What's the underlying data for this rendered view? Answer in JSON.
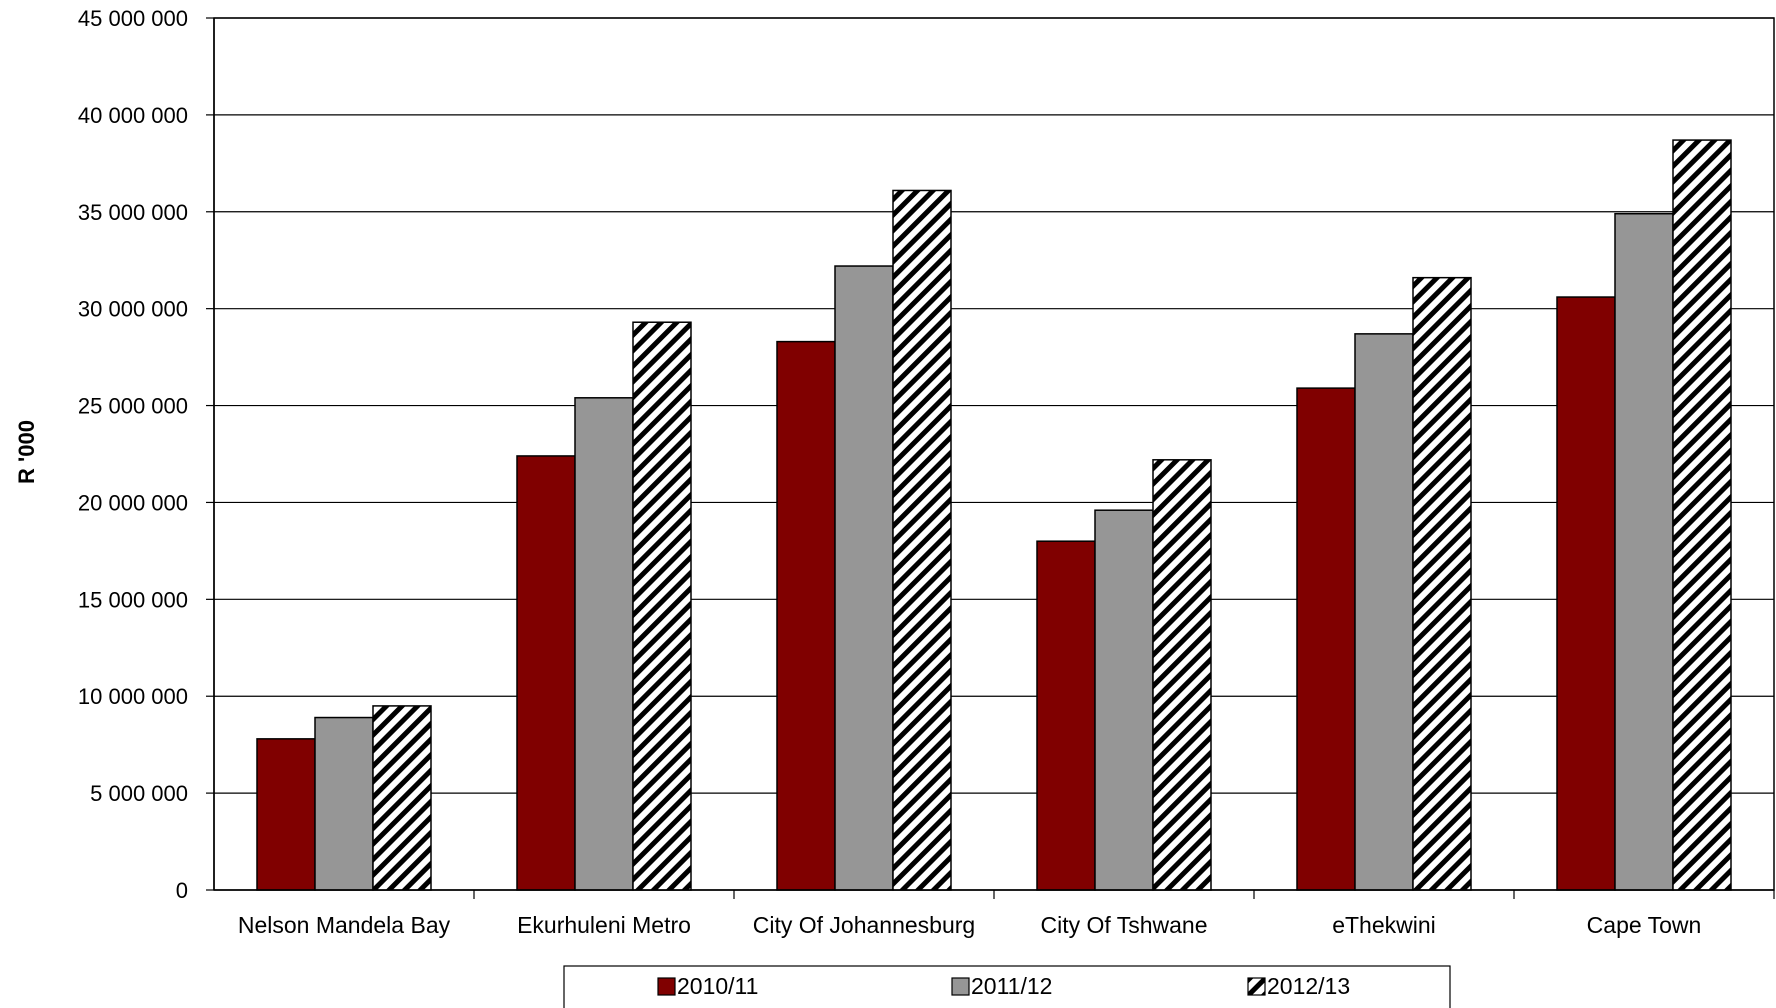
{
  "chart_data": {
    "type": "bar",
    "title": "",
    "xlabel": "",
    "ylabel": "R '000",
    "ylim": [
      0,
      45000000
    ],
    "y_ticks": [
      0,
      5000000,
      10000000,
      15000000,
      20000000,
      25000000,
      30000000,
      35000000,
      40000000,
      45000000
    ],
    "y_tick_labels": [
      "0",
      "5 000 000",
      "10 000 000",
      "15 000 000",
      "20 000 000",
      "25 000 000",
      "30 000 000",
      "35 000 000",
      "40 000 000",
      "45 000 000"
    ],
    "grid": true,
    "legend_position": "bottom",
    "categories": [
      "Nelson Mandela Bay",
      "Ekurhuleni Metro",
      "City Of Johannesburg",
      "City Of Tshwane",
      "eThekwini",
      "Cape Town"
    ],
    "series": [
      {
        "name": "2010/11",
        "fill": "#800000",
        "pattern": "solid",
        "values": [
          7800000,
          22400000,
          28300000,
          18000000,
          25900000,
          30600000
        ]
      },
      {
        "name": "2011/12",
        "fill": "#969696",
        "pattern": "solid",
        "values": [
          8900000,
          25400000,
          32200000,
          19600000,
          28700000,
          34900000
        ]
      },
      {
        "name": "2012/13",
        "fill": "#ffffff",
        "pattern": "diagonal-hatch",
        "values": [
          9500000,
          29300000,
          36100000,
          22200000,
          31600000,
          38700000
        ]
      }
    ]
  }
}
